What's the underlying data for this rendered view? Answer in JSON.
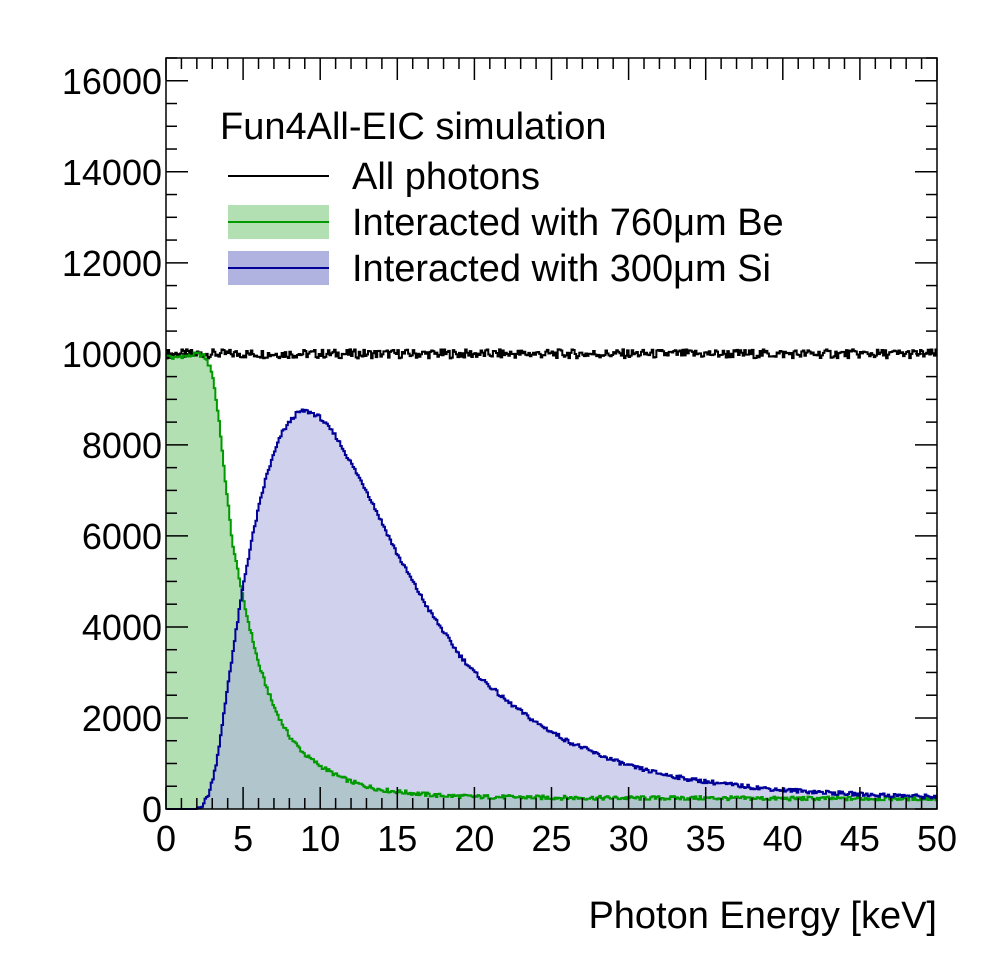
{
  "chart_data": {
    "type": "line",
    "title": "",
    "xlabel": "Photon Energy [keV]",
    "ylabel": "",
    "xlim": [
      0,
      50
    ],
    "ylim": [
      0,
      16500
    ],
    "xticks": [
      "0",
      "5",
      "10",
      "15",
      "20",
      "25",
      "30",
      "35",
      "40",
      "45",
      "50"
    ],
    "yticks": [
      "0",
      "2000",
      "4000",
      "6000",
      "8000",
      "10000",
      "12000",
      "14000",
      "16000"
    ],
    "grid": false,
    "legend": {
      "placement": "top-left",
      "header": "Fun4All-EIC simulation",
      "entries": [
        {
          "label": "All photons",
          "style": "line",
          "color": "#000000"
        },
        {
          "label": "Interacted with 760μm Be",
          "style": "filled",
          "line_color": "#009900",
          "fill_color": "#b2e0b2"
        },
        {
          "label": "Interacted with 300μm Si",
          "style": "filled",
          "line_color": "#000099",
          "fill_color": "#b0b2e0"
        }
      ]
    },
    "series": [
      {
        "name": "All photons",
        "color": "#000000",
        "fill": null,
        "x": [
          0,
          2.5,
          5,
          7.5,
          10,
          12.5,
          15,
          17.5,
          20,
          22.5,
          25,
          27.5,
          30,
          32.5,
          35,
          37.5,
          40,
          42.5,
          45,
          47.5,
          50
        ],
        "y": [
          10000,
          10000,
          10000,
          10000,
          10000,
          10000,
          10000,
          10000,
          10000,
          10000,
          10000,
          10000,
          10000,
          10000,
          10000,
          10000,
          10000,
          10000,
          10000,
          10000,
          10000
        ]
      },
      {
        "name": "Interacted with 760μm Be",
        "color": "#009900",
        "fill": "#b2e0b2",
        "x": [
          0,
          0.5,
          1,
          1.5,
          2,
          2.5,
          3,
          3.25,
          3.5,
          3.75,
          4,
          4.25,
          4.5,
          4.75,
          5,
          5.5,
          6,
          6.5,
          7,
          7.5,
          8,
          9,
          10,
          11,
          12,
          13,
          14,
          15,
          17.5,
          20,
          25,
          30,
          35,
          40,
          45,
          50
        ],
        "y": [
          10000,
          9900,
          9950,
          9950,
          10000,
          9950,
          9600,
          9000,
          8400,
          7500,
          6800,
          6000,
          5500,
          5100,
          4600,
          3900,
          3200,
          2700,
          2250,
          1900,
          1600,
          1200,
          950,
          750,
          600,
          500,
          420,
          380,
          300,
          270,
          250,
          240,
          240,
          230,
          230,
          230
        ]
      },
      {
        "name": "Interacted with 300μm Si",
        "color": "#000099",
        "fill": "#b0b2e0",
        "x": [
          0,
          1,
          2,
          2.4,
          2.8,
          3.2,
          3.6,
          4,
          4.5,
          5,
          5.5,
          6,
          6.5,
          7,
          7.5,
          8,
          8.5,
          9,
          9.5,
          10,
          11,
          12,
          13,
          14,
          15,
          16,
          17,
          18,
          19,
          20,
          22,
          24,
          26,
          28,
          30,
          32,
          34,
          36,
          38,
          40,
          42,
          44,
          46,
          48,
          50
        ],
        "y": [
          0,
          0,
          0,
          100,
          350,
          900,
          1700,
          2700,
          3800,
          4900,
          5800,
          6600,
          7300,
          7800,
          8250,
          8500,
          8700,
          8750,
          8700,
          8600,
          8200,
          7600,
          7000,
          6300,
          5600,
          5000,
          4400,
          3900,
          3400,
          3000,
          2400,
          1900,
          1500,
          1200,
          950,
          780,
          650,
          560,
          480,
          420,
          380,
          340,
          310,
          290,
          270
        ]
      }
    ]
  }
}
